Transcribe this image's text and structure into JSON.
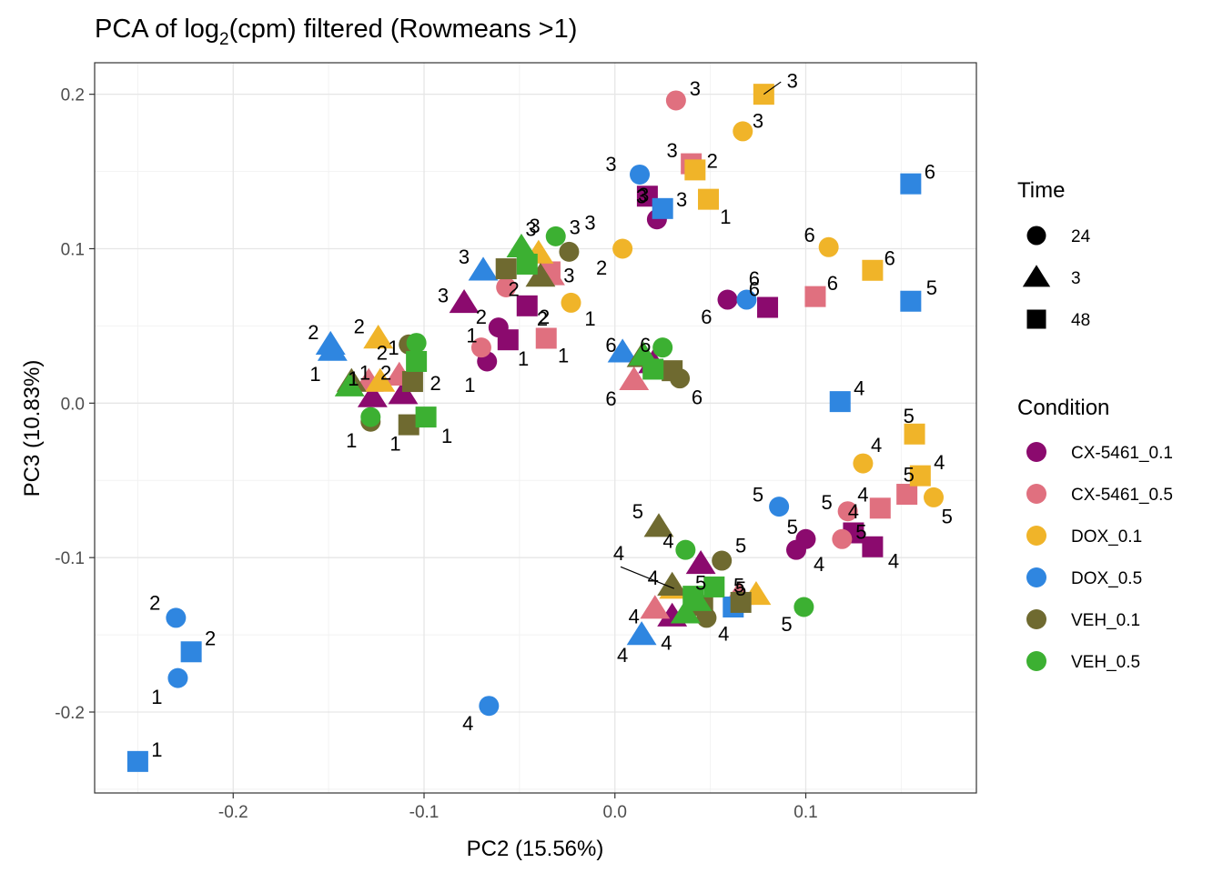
{
  "chart_data": {
    "type": "scatter",
    "title_prefix": "PCA of log",
    "title_subscript": "2",
    "title_suffix": "(cpm) filtered (Rowmeans >1)",
    "xlabel": "PC2 (15.56%)",
    "ylabel": "PC3 (10.83%)",
    "xlim": [
      -0.2726,
      0.1894
    ],
    "ylim": [
      -0.2524,
      0.2204
    ],
    "xticks": [
      {
        "value": -0.2,
        "label": "-0.2"
      },
      {
        "value": -0.1,
        "label": "-0.1"
      },
      {
        "value": 0.0,
        "label": "0.0"
      },
      {
        "value": 0.1,
        "label": "0.1"
      }
    ],
    "yticks": [
      {
        "value": 0.2,
        "label": "0.2"
      },
      {
        "value": 0.1,
        "label": "0.1"
      },
      {
        "value": 0.0,
        "label": "0.0"
      },
      {
        "value": -0.1,
        "label": "-0.1"
      },
      {
        "value": -0.2,
        "label": "-0.2"
      }
    ],
    "grid": true,
    "legend_position": "right",
    "shape_legend": {
      "title": "Time",
      "items": [
        {
          "label": "24",
          "shape": "circle"
        },
        {
          "label": "3",
          "shape": "triangle"
        },
        {
          "label": "48",
          "shape": "square"
        }
      ]
    },
    "color_legend": {
      "title": "Condition",
      "items": [
        {
          "label": "CX-5461_0.1",
          "color": "#8b0a6e"
        },
        {
          "label": "CX-5461_0.5",
          "color": "#e0707f"
        },
        {
          "label": "DOX_0.1",
          "color": "#f0b429"
        },
        {
          "label": "DOX_0.5",
          "color": "#2f86e0"
        },
        {
          "label": "VEH_0.1",
          "color": "#6f6a30"
        },
        {
          "label": "VEH_0.5",
          "color": "#3cb032"
        }
      ]
    },
    "points": [
      {
        "c": 0,
        "t": "24",
        "x": -0.067,
        "y": 0.027,
        "label": "1",
        "lx": -0.076,
        "ly": 0.012
      },
      {
        "c": 0,
        "t": "24",
        "x": -0.061,
        "y": 0.049,
        "label": "2",
        "lx": -0.07,
        "ly": 0.056
      },
      {
        "c": 0,
        "t": "24",
        "x": 0.022,
        "y": 0.119,
        "label": "3",
        "lx": 0.014,
        "ly": 0.134
      },
      {
        "c": 0,
        "t": "24",
        "x": 0.1,
        "y": -0.088,
        "label": "4",
        "lx": 0.107,
        "ly": -0.104
      },
      {
        "c": 0,
        "t": "24",
        "x": 0.095,
        "y": -0.095,
        "label": "5",
        "lx": 0.093,
        "ly": -0.08
      },
      {
        "c": 0,
        "t": "24",
        "x": 0.059,
        "y": 0.067,
        "label": "6",
        "lx": 0.048,
        "ly": 0.056
      },
      {
        "c": 0,
        "t": "3",
        "x": -0.127,
        "y": 0.004,
        "label": "1",
        "lx": -0.137,
        "ly": 0.016
      },
      {
        "c": 0,
        "t": "3",
        "x": -0.111,
        "y": 0.006,
        "label": "2",
        "lx": -0.12,
        "ly": 0.02
      },
      {
        "c": 0,
        "t": "3",
        "x": -0.079,
        "y": 0.065,
        "label": "3",
        "lx": -0.09,
        "ly": 0.07
      },
      {
        "c": 0,
        "t": "3",
        "x": 0.03,
        "y": -0.138,
        "label": "4",
        "lx": 0.027,
        "ly": -0.155
      },
      {
        "c": 0,
        "t": "3",
        "x": 0.045,
        "y": -0.104,
        "label": "5",
        "lx": 0.045,
        "ly": -0.116
      },
      {
        "c": 0,
        "t": "3",
        "x": 0.02,
        "y": 0.026,
        "label": "6",
        "lx": 0.016,
        "ly": 0.038
      },
      {
        "c": 0,
        "t": "48",
        "x": -0.056,
        "y": 0.041,
        "label": "1",
        "lx": -0.048,
        "ly": 0.029
      },
      {
        "c": 0,
        "t": "48",
        "x": -0.046,
        "y": 0.063,
        "label": "2",
        "lx": -0.038,
        "ly": 0.055
      },
      {
        "c": 0,
        "t": "48",
        "x": 0.017,
        "y": 0.134,
        "label": "3",
        "lx": 0.015,
        "ly": 0.135
      },
      {
        "c": 0,
        "t": "48",
        "x": 0.135,
        "y": -0.093,
        "label": "4",
        "lx": 0.146,
        "ly": -0.102
      },
      {
        "c": 0,
        "t": "48",
        "x": 0.125,
        "y": -0.084,
        "label": "5",
        "lx": 0.129,
        "ly": -0.083
      },
      {
        "c": 0,
        "t": "48",
        "x": 0.08,
        "y": 0.062,
        "label": "6",
        "lx": 0.073,
        "ly": 0.074
      },
      {
        "c": 1,
        "t": "24",
        "x": -0.07,
        "y": 0.036,
        "label": "1",
        "lx": -0.075,
        "ly": 0.044
      },
      {
        "c": 1,
        "t": "24",
        "x": -0.057,
        "y": 0.075,
        "label": "2",
        "lx": -0.053,
        "ly": 0.074
      },
      {
        "c": 1,
        "t": "24",
        "x": 0.032,
        "y": 0.196,
        "label": "3",
        "lx": 0.042,
        "ly": 0.204
      },
      {
        "c": 1,
        "t": "24",
        "x": 0.119,
        "y": -0.088,
        "label": "4",
        "lx": 0.125,
        "ly": -0.07
      },
      {
        "c": 1,
        "t": "24",
        "x": 0.122,
        "y": -0.07,
        "label": "5",
        "lx": 0.111,
        "ly": -0.064
      },
      {
        "c": 1,
        "t": "24",
        "x": 0.0,
        "y": 0.0,
        "label": "",
        "lx": 0.0,
        "ly": 0.0,
        "hidden": true
      },
      {
        "c": 1,
        "t": "3",
        "x": -0.129,
        "y": 0.014,
        "label": "1",
        "lx": -0.137,
        "ly": 0.016
      },
      {
        "c": 1,
        "t": "3",
        "x": -0.113,
        "y": 0.018,
        "label": "2",
        "lx": -0.122,
        "ly": 0.033
      },
      {
        "c": 1,
        "t": "3",
        "x": -0.034,
        "y": 0.083,
        "label": "3",
        "lx": -0.024,
        "ly": 0.083
      },
      {
        "c": 1,
        "t": "3",
        "x": 0.021,
        "y": -0.133,
        "label": "4",
        "lx": 0.01,
        "ly": -0.138
      },
      {
        "c": 1,
        "t": "3",
        "x": 0.065,
        "y": -0.124,
        "label": "5",
        "lx": 0.065,
        "ly": -0.118
      },
      {
        "c": 1,
        "t": "3",
        "x": 0.01,
        "y": 0.015,
        "label": "6",
        "lx": -0.002,
        "ly": 0.003
      },
      {
        "c": 1,
        "t": "48",
        "x": -0.036,
        "y": 0.042,
        "label": "1",
        "lx": -0.027,
        "ly": 0.031
      },
      {
        "c": 1,
        "t": "48",
        "x": -0.034,
        "y": 0.085,
        "label": "2",
        "lx": -0.037,
        "ly": 0.056
      },
      {
        "c": 1,
        "t": "48",
        "x": 0.04,
        "y": 0.155,
        "label": "3",
        "lx": 0.03,
        "ly": 0.164
      },
      {
        "c": 1,
        "t": "48",
        "x": 0.139,
        "y": -0.068,
        "label": "4",
        "lx": 0.13,
        "ly": -0.059
      },
      {
        "c": 1,
        "t": "48",
        "x": 0.153,
        "y": -0.059,
        "label": "5",
        "lx": 0.154,
        "ly": -0.046
      },
      {
        "c": 1,
        "t": "48",
        "x": 0.105,
        "y": 0.069,
        "label": "6",
        "lx": 0.114,
        "ly": 0.078
      },
      {
        "c": 2,
        "t": "24",
        "x": -0.023,
        "y": 0.065,
        "label": "1",
        "lx": -0.013,
        "ly": 0.055
      },
      {
        "c": 2,
        "t": "24",
        "x": 0.004,
        "y": 0.1,
        "label": "2",
        "lx": -0.007,
        "ly": 0.088
      },
      {
        "c": 2,
        "t": "24",
        "x": 0.067,
        "y": 0.176,
        "label": "3",
        "lx": 0.075,
        "ly": 0.183
      },
      {
        "c": 2,
        "t": "24",
        "x": 0.13,
        "y": -0.039,
        "label": "4",
        "lx": 0.137,
        "ly": -0.027
      },
      {
        "c": 2,
        "t": "24",
        "x": 0.167,
        "y": -0.061,
        "label": "5",
        "lx": 0.174,
        "ly": -0.073
      },
      {
        "c": 2,
        "t": "24",
        "x": 0.112,
        "y": 0.101,
        "label": "6",
        "lx": 0.102,
        "ly": 0.109
      },
      {
        "c": 2,
        "t": "3",
        "x": -0.123,
        "y": 0.014,
        "label": "1",
        "lx": -0.131,
        "ly": 0.02
      },
      {
        "c": 2,
        "t": "3",
        "x": -0.124,
        "y": 0.042,
        "label": "2",
        "lx": -0.134,
        "ly": 0.05
      },
      {
        "c": 2,
        "t": "3",
        "x": -0.04,
        "y": 0.097,
        "label": "3",
        "lx": -0.044,
        "ly": 0.113
      },
      {
        "c": 2,
        "t": "3",
        "x": 0.031,
        "y": -0.12,
        "label": "4",
        "lx": 0.02,
        "ly": -0.113
      },
      {
        "c": 2,
        "t": "3",
        "x": 0.074,
        "y": -0.124,
        "label": "5",
        "lx": 0.066,
        "ly": -0.12
      },
      {
        "c": 2,
        "t": "3",
        "x": 0.0,
        "y": 0.0,
        "label": "",
        "lx": 0.0,
        "ly": 0.0,
        "hidden": true
      },
      {
        "c": 2,
        "t": "48",
        "x": 0.049,
        "y": 0.132,
        "label": "1",
        "lx": 0.058,
        "ly": 0.121
      },
      {
        "c": 2,
        "t": "48",
        "x": 0.042,
        "y": 0.151,
        "label": "2",
        "lx": 0.051,
        "ly": 0.157
      },
      {
        "c": 2,
        "t": "48",
        "x": 0.078,
        "y": 0.2,
        "label": "3",
        "lx": 0.093,
        "ly": 0.209
      },
      {
        "c": 2,
        "t": "48",
        "x": 0.16,
        "y": -0.047,
        "label": "4",
        "lx": 0.17,
        "ly": -0.038
      },
      {
        "c": 2,
        "t": "48",
        "x": 0.157,
        "y": -0.02,
        "label": "5",
        "lx": 0.154,
        "ly": -0.008
      },
      {
        "c": 2,
        "t": "48",
        "x": 0.135,
        "y": 0.086,
        "label": "6",
        "lx": 0.144,
        "ly": 0.094
      },
      {
        "c": 3,
        "t": "24",
        "x": -0.229,
        "y": -0.178,
        "label": "1",
        "lx": -0.24,
        "ly": -0.19
      },
      {
        "c": 3,
        "t": "24",
        "x": -0.23,
        "y": -0.139,
        "label": "2",
        "lx": -0.241,
        "ly": -0.129
      },
      {
        "c": 3,
        "t": "24",
        "x": 0.013,
        "y": 0.148,
        "label": "3",
        "lx": -0.002,
        "ly": 0.155
      },
      {
        "c": 3,
        "t": "24",
        "x": -0.066,
        "y": -0.196,
        "label": "4",
        "lx": -0.077,
        "ly": -0.207
      },
      {
        "c": 3,
        "t": "24",
        "x": 0.086,
        "y": -0.067,
        "label": "5",
        "lx": 0.075,
        "ly": -0.059
      },
      {
        "c": 3,
        "t": "24",
        "x": 0.069,
        "y": 0.067,
        "label": "6",
        "lx": 0.073,
        "ly": 0.081
      },
      {
        "c": 3,
        "t": "3",
        "x": -0.148,
        "y": 0.034,
        "label": "1",
        "lx": -0.157,
        "ly": 0.019
      },
      {
        "c": 3,
        "t": "3",
        "x": -0.149,
        "y": 0.038,
        "label": "2",
        "lx": -0.158,
        "ly": 0.046
      },
      {
        "c": 3,
        "t": "3",
        "x": -0.069,
        "y": 0.086,
        "label": "3",
        "lx": -0.079,
        "ly": 0.095
      },
      {
        "c": 3,
        "t": "3",
        "x": 0.014,
        "y": -0.15,
        "label": "4",
        "lx": 0.004,
        "ly": -0.163
      },
      {
        "c": 3,
        "t": "3",
        "x": 0.0,
        "y": 0.0,
        "label": "",
        "lx": 0.0,
        "ly": 0.0,
        "hidden": true
      },
      {
        "c": 3,
        "t": "3",
        "x": 0.004,
        "y": 0.033,
        "label": "6",
        "lx": -0.002,
        "ly": 0.038
      },
      {
        "c": 3,
        "t": "48",
        "x": -0.25,
        "y": -0.232,
        "label": "1",
        "lx": -0.24,
        "ly": -0.224
      },
      {
        "c": 3,
        "t": "48",
        "x": -0.222,
        "y": -0.161,
        "label": "2",
        "lx": -0.212,
        "ly": -0.152
      },
      {
        "c": 3,
        "t": "48",
        "x": 0.025,
        "y": 0.126,
        "label": "3",
        "lx": 0.035,
        "ly": 0.132
      },
      {
        "c": 3,
        "t": "48",
        "x": 0.118,
        "y": 0.001,
        "label": "4",
        "lx": 0.128,
        "ly": 0.01
      },
      {
        "c": 3,
        "t": "48",
        "x": 0.155,
        "y": 0.066,
        "label": "5",
        "lx": 0.166,
        "ly": 0.075
      },
      {
        "c": 3,
        "t": "48",
        "x": 0.155,
        "y": 0.142,
        "label": "6",
        "lx": 0.165,
        "ly": 0.15
      },
      {
        "c": 3,
        "t": "48",
        "x": 0.062,
        "y": -0.132,
        "label": "",
        "lx": 0.0,
        "ly": 0.0
      },
      {
        "c": 4,
        "t": "24",
        "x": -0.128,
        "y": -0.012,
        "label": "1",
        "lx": -0.138,
        "ly": -0.024
      },
      {
        "c": 4,
        "t": "24",
        "x": -0.024,
        "y": 0.098,
        "label": "3",
        "lx": -0.021,
        "ly": 0.114
      },
      {
        "c": 4,
        "t": "24",
        "x": -0.108,
        "y": 0.038,
        "label": "",
        "lx": 0.0,
        "ly": 0.0
      },
      {
        "c": 4,
        "t": "24",
        "x": 0.048,
        "y": -0.139,
        "label": "4",
        "lx": 0.057,
        "ly": -0.149
      },
      {
        "c": 4,
        "t": "24",
        "x": 0.056,
        "y": -0.102,
        "label": "5",
        "lx": 0.066,
        "ly": -0.092
      },
      {
        "c": 4,
        "t": "24",
        "x": 0.034,
        "y": 0.016,
        "label": "6",
        "lx": 0.043,
        "ly": 0.004
      },
      {
        "c": 4,
        "t": "3",
        "x": -0.138,
        "y": 0.014,
        "label": "",
        "lx": 0.0,
        "ly": 0.0
      },
      {
        "c": 4,
        "t": "3",
        "x": -0.039,
        "y": 0.082,
        "label": "",
        "lx": 0.0,
        "ly": 0.0
      },
      {
        "c": 4,
        "t": "3",
        "x": 0.023,
        "y": -0.08,
        "label": "5",
        "lx": 0.012,
        "ly": -0.07
      },
      {
        "c": 4,
        "t": "3",
        "x": 0.03,
        "y": -0.118,
        "label": "",
        "lx": 0.0,
        "ly": 0.0
      },
      {
        "c": 4,
        "t": "3",
        "x": 0.014,
        "y": 0.03,
        "label": "",
        "lx": 0.0,
        "ly": 0.0
      },
      {
        "c": 4,
        "t": "48",
        "x": -0.108,
        "y": -0.014,
        "label": "1",
        "lx": -0.115,
        "ly": -0.026
      },
      {
        "c": 4,
        "t": "48",
        "x": -0.106,
        "y": 0.014,
        "label": "",
        "lx": 0.0,
        "ly": 0.0
      },
      {
        "c": 4,
        "t": "48",
        "x": -0.057,
        "y": 0.087,
        "label": "",
        "lx": 0.0,
        "ly": 0.0
      },
      {
        "c": 4,
        "t": "48",
        "x": 0.046,
        "y": -0.131,
        "label": "",
        "lx": 0.0,
        "ly": 0.0
      },
      {
        "c": 4,
        "t": "48",
        "x": 0.066,
        "y": -0.129,
        "label": "",
        "lx": 0.0,
        "ly": 0.0
      },
      {
        "c": 4,
        "t": "48",
        "x": 0.03,
        "y": 0.021,
        "label": "",
        "lx": 0.0,
        "ly": 0.0
      },
      {
        "c": 5,
        "t": "24",
        "x": -0.128,
        "y": -0.009,
        "label": "",
        "lx": 0.0,
        "ly": 0.0
      },
      {
        "c": 5,
        "t": "24",
        "x": -0.104,
        "y": 0.039,
        "label": "1",
        "lx": -0.116,
        "ly": 0.036
      },
      {
        "c": 5,
        "t": "24",
        "x": -0.031,
        "y": 0.108,
        "label": "3",
        "lx": -0.013,
        "ly": 0.117
      },
      {
        "c": 5,
        "t": "24",
        "x": 0.037,
        "y": -0.095,
        "label": "4",
        "lx": 0.028,
        "ly": -0.089
      },
      {
        "c": 5,
        "t": "24",
        "x": 0.099,
        "y": -0.132,
        "label": "5",
        "lx": 0.09,
        "ly": -0.143
      },
      {
        "c": 5,
        "t": "24",
        "x": 0.025,
        "y": 0.036,
        "label": "",
        "lx": 0.0,
        "ly": 0.0
      },
      {
        "c": 5,
        "t": "3",
        "x": -0.139,
        "y": 0.011,
        "label": "",
        "lx": 0.0,
        "ly": 0.0
      },
      {
        "c": 5,
        "t": "3",
        "x": -0.049,
        "y": 0.101,
        "label": "3",
        "lx": -0.042,
        "ly": 0.115
      },
      {
        "c": 5,
        "t": "3",
        "x": 0.037,
        "y": -0.136,
        "label": "",
        "lx": 0.0,
        "ly": 0.0
      },
      {
        "c": 5,
        "t": "3",
        "x": 0.043,
        "y": -0.128,
        "label": "",
        "lx": 0.0,
        "ly": 0.0
      },
      {
        "c": 5,
        "t": "3",
        "x": 0.015,
        "y": 0.031,
        "label": "",
        "lx": 0.0,
        "ly": 0.0
      },
      {
        "c": 5,
        "t": "48",
        "x": -0.099,
        "y": -0.009,
        "label": "1",
        "lx": -0.088,
        "ly": -0.021
      },
      {
        "c": 5,
        "t": "48",
        "x": -0.104,
        "y": 0.027,
        "label": "2",
        "lx": -0.094,
        "ly": 0.013
      },
      {
        "c": 5,
        "t": "48",
        "x": -0.046,
        "y": 0.09,
        "label": "",
        "lx": 0.0,
        "ly": 0.0
      },
      {
        "c": 5,
        "t": "48",
        "x": 0.052,
        "y": -0.119,
        "label": "",
        "lx": 0.0,
        "ly": 0.0
      },
      {
        "c": 5,
        "t": "48",
        "x": 0.041,
        "y": -0.125,
        "label": "",
        "lx": 0.0,
        "ly": 0.0
      },
      {
        "c": 5,
        "t": "48",
        "x": 0.02,
        "y": 0.022,
        "label": "",
        "lx": 0.0,
        "ly": 0.0
      }
    ],
    "leader_lines": [
      {
        "x1": 0.078,
        "y1": 0.2,
        "x2": 0.087,
        "y2": 0.208
      },
      {
        "x1": 0.031,
        "y1": -0.12,
        "x2": 0.003,
        "y2": -0.106
      }
    ],
    "extra_labels": [
      {
        "label": "4",
        "x": 0.002,
        "y": -0.097
      }
    ]
  }
}
